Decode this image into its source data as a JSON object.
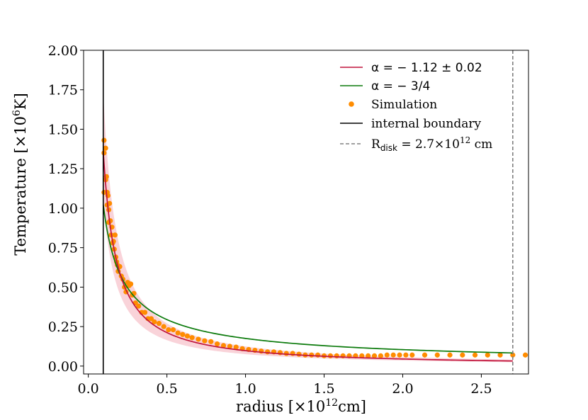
{
  "chart_data": {
    "type": "scatter",
    "xlabel": "radius [×10¹²cm]",
    "xlabel_parts": {
      "pre": "radius [×10",
      "sup": "12",
      "post": "cm]"
    },
    "ylabel": "Temperature [×10⁶K]",
    "ylabel_parts": {
      "pre": "Temperature [×10",
      "sup": "6",
      "post": "K]"
    },
    "xlim": [
      -0.03,
      2.8
    ],
    "ylim": [
      -0.05,
      2.0
    ],
    "xticks": [
      0.0,
      0.5,
      1.0,
      1.5,
      2.0,
      2.5
    ],
    "xtick_labels": [
      "0.0",
      "0.5",
      "1.0",
      "1.5",
      "2.0",
      "2.5"
    ],
    "yticks": [
      0.0,
      0.25,
      0.5,
      0.75,
      1.0,
      1.25,
      1.5,
      1.75,
      2.0
    ],
    "ytick_labels": [
      "0.00",
      "0.25",
      "0.50",
      "0.75",
      "1.00",
      "1.25",
      "1.50",
      "1.75",
      "2.00"
    ],
    "grid": false,
    "legend_position": "top-right",
    "colors": {
      "fit": "#c0143c",
      "band": "#f7c4cc",
      "analytic": "#0b7a0b",
      "simulation": "#ff8c00",
      "boundary": "#000000",
      "rdisk": "#808080"
    },
    "series": [
      {
        "name": "fit",
        "kind": "line",
        "legend": {
          "pre": "α = − 1.12 ± 0.02"
        },
        "formula": "T = 0.0975 * r^(-1.12)",
        "x_range": [
          0.095,
          2.7
        ]
      },
      {
        "name": "analytic",
        "kind": "line",
        "legend": {
          "pre": "α = − 3/4"
        },
        "formula": "T = 0.175 * r^(-0.75)",
        "x_range": [
          0.095,
          2.7
        ]
      },
      {
        "name": "Simulation",
        "kind": "scatter",
        "legend": {
          "pre": "Simulation"
        },
        "x": [
          0.1,
          0.1,
          0.1,
          0.11,
          0.11,
          0.115,
          0.12,
          0.12,
          0.125,
          0.13,
          0.13,
          0.135,
          0.14,
          0.145,
          0.15,
          0.155,
          0.16,
          0.165,
          0.17,
          0.175,
          0.18,
          0.185,
          0.19,
          0.2,
          0.21,
          0.22,
          0.23,
          0.24,
          0.25,
          0.26,
          0.27,
          0.28,
          0.29,
          0.3,
          0.32,
          0.34,
          0.36,
          0.38,
          0.4,
          0.42,
          0.45,
          0.48,
          0.51,
          0.54,
          0.57,
          0.6,
          0.63,
          0.66,
          0.7,
          0.74,
          0.78,
          0.82,
          0.86,
          0.9,
          0.94,
          0.98,
          1.02,
          1.06,
          1.1,
          1.14,
          1.18,
          1.22,
          1.26,
          1.3,
          1.34,
          1.38,
          1.42,
          1.46,
          1.5,
          1.54,
          1.58,
          1.62,
          1.66,
          1.7,
          1.74,
          1.78,
          1.82,
          1.86,
          1.9,
          1.94,
          1.98,
          2.02,
          2.06,
          2.14,
          2.22,
          2.3,
          2.38,
          2.46,
          2.54,
          2.62,
          2.7,
          2.78
        ],
        "values": [
          1.43,
          1.35,
          1.1,
          1.38,
          1.18,
          1.2,
          1.1,
          1.02,
          1.08,
          0.99,
          0.91,
          1.03,
          0.92,
          0.83,
          0.88,
          0.78,
          0.79,
          0.74,
          0.83,
          0.69,
          0.66,
          0.64,
          0.6,
          0.63,
          0.57,
          0.55,
          0.5,
          0.47,
          0.53,
          0.51,
          0.52,
          0.45,
          0.46,
          0.4,
          0.38,
          0.34,
          0.34,
          0.3,
          0.3,
          0.28,
          0.27,
          0.25,
          0.23,
          0.23,
          0.21,
          0.2,
          0.19,
          0.18,
          0.17,
          0.16,
          0.155,
          0.14,
          0.13,
          0.125,
          0.12,
          0.11,
          0.105,
          0.1,
          0.095,
          0.09,
          0.09,
          0.085,
          0.08,
          0.08,
          0.075,
          0.07,
          0.07,
          0.07,
          0.065,
          0.065,
          0.065,
          0.065,
          0.065,
          0.065,
          0.065,
          0.065,
          0.065,
          0.065,
          0.07,
          0.07,
          0.07,
          0.07,
          0.07,
          0.07,
          0.07,
          0.07,
          0.07,
          0.07,
          0.07,
          0.07,
          0.07,
          0.07
        ]
      },
      {
        "name": "internal boundary",
        "kind": "vline",
        "legend": {
          "pre": "internal boundary"
        },
        "x": 0.095
      },
      {
        "name": "R_disk",
        "kind": "vline-dashed",
        "legend": {
          "pre": "R",
          "sub": "disk",
          "mid": " = 2.7×10",
          "sup": "12",
          "post": " cm"
        },
        "x": 2.7
      }
    ],
    "band": {
      "lower_formula": "T = 0.0755 * r^(-1.12)",
      "upper_formula": "T = 0.1244 * r^(-1.12)",
      "x_range": [
        0.095,
        2.7
      ]
    }
  }
}
